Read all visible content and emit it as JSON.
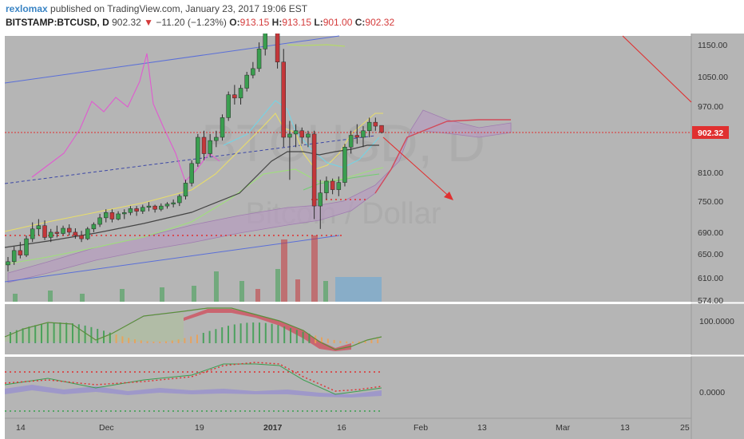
{
  "header": {
    "author": "rexlomax",
    "published_text": "published on TradingView.com, January 23, 2017 19:06 EST",
    "symbol": "BITSTAMP:BTCUSD, D",
    "last": "902.32",
    "change": "−11.20 (−1.23%)",
    "change_direction_icon": "triangle-down-icon",
    "open_label": "O:",
    "open_value": "913.15",
    "high_label": "H:",
    "high_value": "913.15",
    "low_label": "L:",
    "low_value": "901.00",
    "close_label": "C:",
    "close_value": "902.32"
  },
  "watermark": {
    "symbol": "BTCUSD, D",
    "description": "Bitcoin / Dollar"
  },
  "price_scale": {
    "ticks": [
      "1150.00",
      "1050.00",
      "970.00",
      "902.32",
      "810.00",
      "750.00",
      "690.00",
      "650.00",
      "610.00",
      "574.00"
    ],
    "current_price_label": "902.32"
  },
  "oscillator_scales": {
    "panel1_label": "100.0000",
    "panel2_label": "0.0000"
  },
  "time_axis": {
    "labels": [
      "14",
      "Dec",
      "19",
      "2017",
      "16",
      "Feb",
      "13",
      "Mar",
      "13",
      "25"
    ]
  },
  "colors": {
    "pane_background": "#b5b5b5",
    "up_candle": "#3a9e4f",
    "down_candle": "#c4373a",
    "current_price_line": "#e03030",
    "cloud_fill": "#b89ac2",
    "author_link": "#3a84c4"
  },
  "chart_data": {
    "type": "candlestick",
    "symbol": "BITSTAMP:BTCUSD",
    "interval": "D",
    "ohlc": {
      "open": 913.15,
      "high": 913.15,
      "low": 901.0,
      "close": 902.32
    },
    "last_price": 902.32,
    "y_range": [
      574,
      1165
    ],
    "y_ticks": [
      1150,
      1050,
      970,
      902.32,
      810,
      750,
      690,
      650,
      610,
      574
    ],
    "x_labels": [
      "14",
      "Dec",
      "19",
      "2017",
      "16",
      "Feb",
      "13",
      "Mar",
      "13",
      "25"
    ],
    "candles": [
      {
        "o": 700,
        "h": 712,
        "l": 690,
        "c": 705
      },
      {
        "o": 705,
        "h": 728,
        "l": 700,
        "c": 722
      },
      {
        "o": 722,
        "h": 735,
        "l": 710,
        "c": 715
      },
      {
        "o": 715,
        "h": 745,
        "l": 712,
        "c": 740
      },
      {
        "o": 740,
        "h": 765,
        "l": 735,
        "c": 755
      },
      {
        "o": 755,
        "h": 770,
        "l": 745,
        "c": 760
      },
      {
        "o": 760,
        "h": 768,
        "l": 738,
        "c": 742
      },
      {
        "o": 742,
        "h": 755,
        "l": 735,
        "c": 750
      },
      {
        "o": 750,
        "h": 760,
        "l": 742,
        "c": 748
      },
      {
        "o": 748,
        "h": 760,
        "l": 745,
        "c": 756
      },
      {
        "o": 756,
        "h": 762,
        "l": 745,
        "c": 750
      },
      {
        "o": 750,
        "h": 756,
        "l": 740,
        "c": 745
      },
      {
        "o": 745,
        "h": 752,
        "l": 735,
        "c": 740
      },
      {
        "o": 740,
        "h": 758,
        "l": 738,
        "c": 755
      },
      {
        "o": 755,
        "h": 765,
        "l": 750,
        "c": 762
      },
      {
        "o": 762,
        "h": 778,
        "l": 758,
        "c": 772
      },
      {
        "o": 772,
        "h": 785,
        "l": 765,
        "c": 780
      },
      {
        "o": 780,
        "h": 785,
        "l": 765,
        "c": 770
      },
      {
        "o": 770,
        "h": 782,
        "l": 768,
        "c": 778
      },
      {
        "o": 778,
        "h": 785,
        "l": 770,
        "c": 780
      },
      {
        "o": 780,
        "h": 790,
        "l": 776,
        "c": 786
      },
      {
        "o": 786,
        "h": 790,
        "l": 775,
        "c": 782
      },
      {
        "o": 782,
        "h": 792,
        "l": 778,
        "c": 788
      },
      {
        "o": 788,
        "h": 796,
        "l": 782,
        "c": 790
      },
      {
        "o": 790,
        "h": 792,
        "l": 780,
        "c": 785
      },
      {
        "o": 785,
        "h": 794,
        "l": 782,
        "c": 790
      },
      {
        "o": 790,
        "h": 796,
        "l": 786,
        "c": 793
      },
      {
        "o": 793,
        "h": 800,
        "l": 788,
        "c": 795
      },
      {
        "o": 795,
        "h": 808,
        "l": 790,
        "c": 805
      },
      {
        "o": 805,
        "h": 830,
        "l": 800,
        "c": 825
      },
      {
        "o": 825,
        "h": 860,
        "l": 820,
        "c": 855
      },
      {
        "o": 855,
        "h": 900,
        "l": 850,
        "c": 895
      },
      {
        "o": 895,
        "h": 905,
        "l": 860,
        "c": 870
      },
      {
        "o": 870,
        "h": 900,
        "l": 865,
        "c": 890
      },
      {
        "o": 890,
        "h": 905,
        "l": 880,
        "c": 895
      },
      {
        "o": 895,
        "h": 930,
        "l": 890,
        "c": 925
      },
      {
        "o": 925,
        "h": 965,
        "l": 920,
        "c": 960
      },
      {
        "o": 960,
        "h": 975,
        "l": 945,
        "c": 955
      },
      {
        "o": 955,
        "h": 975,
        "l": 945,
        "c": 970
      },
      {
        "o": 970,
        "h": 995,
        "l": 965,
        "c": 990
      },
      {
        "o": 990,
        "h": 1010,
        "l": 985,
        "c": 1000
      },
      {
        "o": 1000,
        "h": 1040,
        "l": 995,
        "c": 1030
      },
      {
        "o": 1030,
        "h": 1125,
        "l": 1020,
        "c": 1120
      },
      {
        "o": 1120,
        "h": 1155,
        "l": 1100,
        "c": 1135
      },
      {
        "o": 1135,
        "h": 1140,
        "l": 1000,
        "c": 1010
      },
      {
        "o": 1010,
        "h": 1030,
        "l": 880,
        "c": 895
      },
      {
        "o": 895,
        "h": 920,
        "l": 830,
        "c": 900
      },
      {
        "o": 900,
        "h": 915,
        "l": 880,
        "c": 905
      },
      {
        "o": 905,
        "h": 910,
        "l": 885,
        "c": 895
      },
      {
        "o": 895,
        "h": 905,
        "l": 880,
        "c": 900
      },
      {
        "o": 900,
        "h": 905,
        "l": 770,
        "c": 790
      },
      {
        "o": 790,
        "h": 830,
        "l": 755,
        "c": 810
      },
      {
        "o": 810,
        "h": 835,
        "l": 800,
        "c": 828
      },
      {
        "o": 828,
        "h": 832,
        "l": 808,
        "c": 815
      },
      {
        "o": 815,
        "h": 835,
        "l": 805,
        "c": 826
      },
      {
        "o": 826,
        "h": 885,
        "l": 820,
        "c": 880
      },
      {
        "o": 880,
        "h": 905,
        "l": 870,
        "c": 898
      },
      {
        "o": 898,
        "h": 915,
        "l": 885,
        "c": 895
      },
      {
        "o": 895,
        "h": 912,
        "l": 880,
        "c": 905
      },
      {
        "o": 905,
        "h": 925,
        "l": 895,
        "c": 918
      },
      {
        "o": 918,
        "h": 925,
        "l": 905,
        "c": 912
      },
      {
        "o": 913.15,
        "h": 913.15,
        "l": 901.0,
        "c": 902.32
      }
    ]
  }
}
